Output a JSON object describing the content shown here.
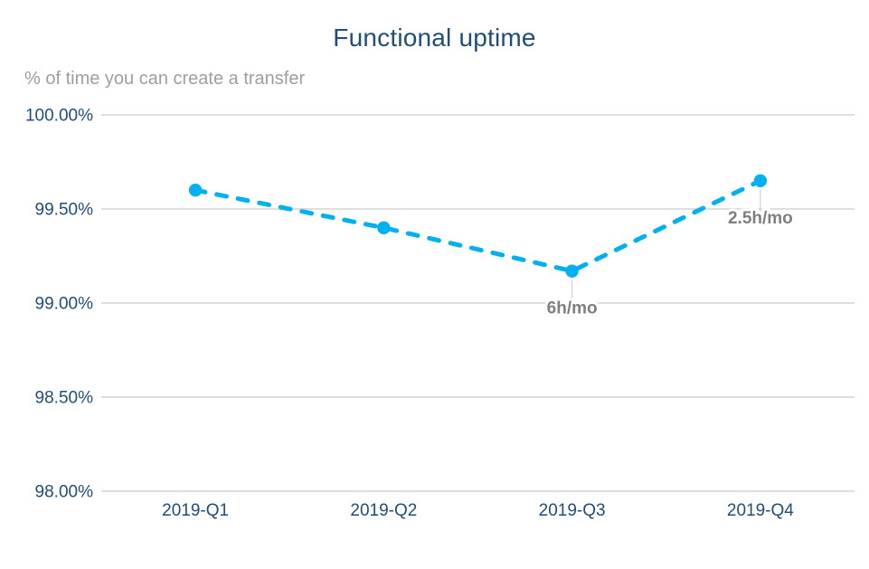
{
  "page": {
    "background": "#FFFFFF"
  },
  "chart_data": {
    "type": "line",
    "title": "Functional uptime",
    "subtitle": "% of time you can create a transfer",
    "categories": [
      "2019-Q1",
      "2019-Q2",
      "2019-Q3",
      "2019-Q4"
    ],
    "series": [
      {
        "name": "Functional uptime",
        "values": [
          99.6,
          99.4,
          99.17,
          99.65
        ]
      }
    ],
    "annotations": [
      {
        "category": "2019-Q3",
        "label": "6h/mo"
      },
      {
        "category": "2019-Q4",
        "label": "2.5h/mo"
      }
    ],
    "xlabel": "",
    "ylabel": "",
    "ylim": [
      98.0,
      100.0
    ],
    "ytick_step": 0.5,
    "ytick_labels": [
      "98.00%",
      "98.50%",
      "99.00%",
      "99.50%",
      "100.00%"
    ],
    "grid": true,
    "legend": "none",
    "line_style": "dashed",
    "colors": {
      "line": "#00B0F0",
      "marker": "#00B0F0",
      "title": "#1F4E79",
      "axis_label": "#1F4E79",
      "subtitle": "#9E9E9E",
      "gridline": "#D9D9D9",
      "leader_line": "#D9D9D9",
      "annotation": "#7F7F7F",
      "background": "#FFFFFF"
    }
  }
}
